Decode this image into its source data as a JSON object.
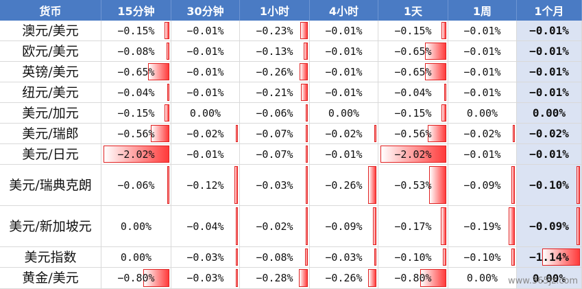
{
  "headers": [
    "货币",
    "15分钟",
    "30分钟",
    "1小时",
    "4小时",
    "1天",
    "1周",
    "1个月"
  ],
  "rows": [
    {
      "pair": "澳元/美元",
      "cells": [
        {
          "t": "−0.15%",
          "b": 0.07
        },
        {
          "t": "−0.01%",
          "b": 0
        },
        {
          "t": "−0.23%",
          "b": 0.11
        },
        {
          "t": "−0.01%",
          "b": 0
        },
        {
          "t": "−0.15%",
          "b": 0.07
        },
        {
          "t": "−0.01%",
          "b": 0
        },
        {
          "t": "−0.01%",
          "b": 0
        }
      ]
    },
    {
      "pair": "欧元/美元",
      "cells": [
        {
          "t": "−0.08%",
          "b": 0.04
        },
        {
          "t": "−0.01%",
          "b": 0
        },
        {
          "t": "−0.13%",
          "b": 0.06
        },
        {
          "t": "−0.01%",
          "b": 0
        },
        {
          "t": "−0.65%",
          "b": 0.32
        },
        {
          "t": "−0.01%",
          "b": 0
        },
        {
          "t": "−0.01%",
          "b": 0
        }
      ]
    },
    {
      "pair": "英镑/美元",
      "cells": [
        {
          "t": "−0.65%",
          "b": 0.32
        },
        {
          "t": "−0.01%",
          "b": 0
        },
        {
          "t": "−0.26%",
          "b": 0.13
        },
        {
          "t": "−0.01%",
          "b": 0
        },
        {
          "t": "−0.65%",
          "b": 0.32
        },
        {
          "t": "−0.01%",
          "b": 0
        },
        {
          "t": "−0.01%",
          "b": 0
        }
      ]
    },
    {
      "pair": "纽元/美元",
      "cells": [
        {
          "t": "−0.04%",
          "b": 0.02
        },
        {
          "t": "−0.01%",
          "b": 0
        },
        {
          "t": "−0.21%",
          "b": 0.1
        },
        {
          "t": "−0.01%",
          "b": 0
        },
        {
          "t": "−0.04%",
          "b": 0.02
        },
        {
          "t": "−0.01%",
          "b": 0
        },
        {
          "t": "−0.01%",
          "b": 0
        }
      ]
    },
    {
      "pair": "美元/加元",
      "cells": [
        {
          "t": "−0.15%",
          "b": 0.07
        },
        {
          "t": "0.00%",
          "b": 0
        },
        {
          "t": "−0.06%",
          "b": 0.03
        },
        {
          "t": "0.00%",
          "b": 0
        },
        {
          "t": "−0.15%",
          "b": 0.07
        },
        {
          "t": "0.00%",
          "b": 0
        },
        {
          "t": "0.00%",
          "b": 0
        }
      ]
    },
    {
      "pair": "美元/瑞郎",
      "cells": [
        {
          "t": "−0.56%",
          "b": 0.28
        },
        {
          "t": "−0.02%",
          "b": 0.02
        },
        {
          "t": "−0.07%",
          "b": 0.03
        },
        {
          "t": "−0.02%",
          "b": 0.02
        },
        {
          "t": "−0.56%",
          "b": 0.28
        },
        {
          "t": "−0.02%",
          "b": 0.02
        },
        {
          "t": "−0.02%",
          "b": 0
        }
      ]
    },
    {
      "pair": "美元/日元",
      "cells": [
        {
          "t": "−2.02%",
          "b": 1.0
        },
        {
          "t": "−0.01%",
          "b": 0
        },
        {
          "t": "−0.07%",
          "b": 0.03
        },
        {
          "t": "−0.01%",
          "b": 0
        },
        {
          "t": "−2.02%",
          "b": 1.0
        },
        {
          "t": "−0.01%",
          "b": 0
        },
        {
          "t": "−0.01%",
          "b": 0
        }
      ]
    },
    {
      "pair": "美元/瑞典克朗",
      "cells": [
        {
          "t": "−0.06%",
          "b": 0.03
        },
        {
          "t": "−0.12%",
          "b": 0.05
        },
        {
          "t": "−0.03%",
          "b": 0.02
        },
        {
          "t": "−0.26%",
          "b": 0.13
        },
        {
          "t": "−0.53%",
          "b": 0.26
        },
        {
          "t": "−0.09%",
          "b": 0.05
        },
        {
          "t": "−0.10%",
          "b": 0.05
        }
      ]
    },
    {
      "pair": "美元/新加坡元",
      "cells": [
        {
          "t": "0.00%",
          "b": 0
        },
        {
          "t": "−0.04%",
          "b": 0.02
        },
        {
          "t": "−0.02%",
          "b": 0.02
        },
        {
          "t": "−0.09%",
          "b": 0.05
        },
        {
          "t": "−0.17%",
          "b": 0.08
        },
        {
          "t": "−0.19%",
          "b": 0.09
        },
        {
          "t": "−0.09%",
          "b": 0.05
        }
      ]
    },
    {
      "pair": "美元指数",
      "cells": [
        {
          "t": "0.00%",
          "b": 0
        },
        {
          "t": "−0.03%",
          "b": 0.02
        },
        {
          "t": "−0.08%",
          "b": 0.04
        },
        {
          "t": "−0.03%",
          "b": 0.02
        },
        {
          "t": "−0.10%",
          "b": 0.05
        },
        {
          "t": "−0.10%",
          "b": 0.05
        },
        {
          "t": "−1.14%",
          "b": 0.57
        }
      ]
    },
    {
      "pair": "黄金/美元",
      "cells": [
        {
          "t": "−0.80%",
          "b": 0.4
        },
        {
          "t": "−0.03%",
          "b": 0.02
        },
        {
          "t": "−0.28%",
          "b": 0.14
        },
        {
          "t": "−0.26%",
          "b": 0.13
        },
        {
          "t": "−0.80%",
          "b": 0.4
        },
        {
          "t": "0.00%",
          "b": 0
        },
        {
          "t": "0.00%",
          "b": 0
        }
      ]
    }
  ],
  "watermark": "www.365jz.com",
  "colors": {
    "header_bg": "#4a7bc4",
    "month_bg": "#dbe3f3",
    "bar": "#ff3b3b"
  }
}
